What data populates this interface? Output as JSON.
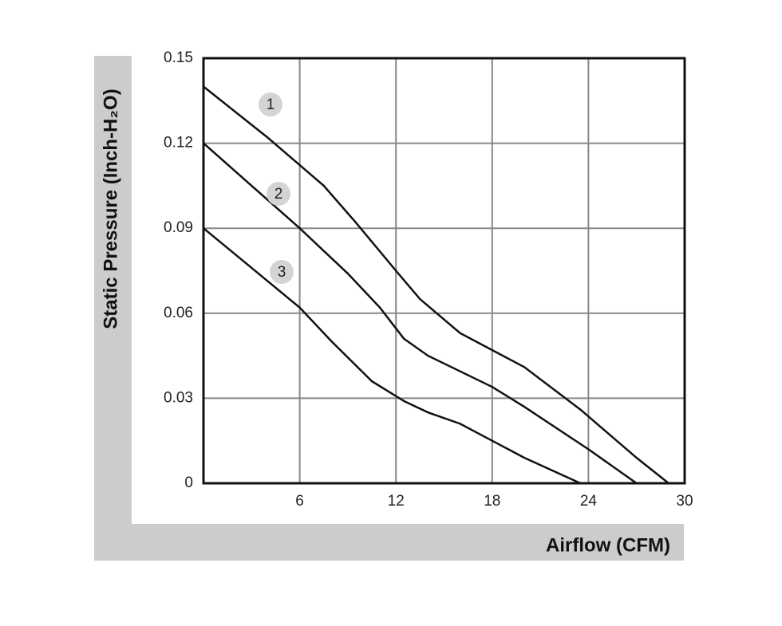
{
  "chart_data": {
    "type": "line",
    "xlabel": "Airflow (CFM)",
    "ylabel": "Static Pressure (Inch-H₂O)",
    "xlim": [
      0,
      30
    ],
    "xticks": [
      6,
      12,
      18,
      24,
      30
    ],
    "ylim": [
      0,
      0.15
    ],
    "yticks": [
      0,
      0.03,
      0.06,
      0.09,
      0.12,
      0.15
    ],
    "grid": true,
    "series": [
      {
        "name": "1",
        "color": "#111111",
        "x": [
          0,
          4,
          7.5,
          9.5,
          12,
          13.5,
          16,
          20,
          23.5,
          27,
          29
        ],
        "values": [
          0.14,
          0.122,
          0.105,
          0.092,
          0.075,
          0.065,
          0.053,
          0.041,
          0.026,
          0.009,
          0
        ]
      },
      {
        "name": "2",
        "color": "#111111",
        "x": [
          0,
          3,
          6,
          9,
          11,
          12.5,
          14,
          18,
          20,
          24,
          27
        ],
        "values": [
          0.12,
          0.105,
          0.09,
          0.074,
          0.062,
          0.051,
          0.045,
          0.034,
          0.027,
          0.012,
          0
        ]
      },
      {
        "name": "3",
        "color": "#111111",
        "x": [
          0,
          3,
          6,
          8,
          10.5,
          12.5,
          14,
          16,
          18,
          20,
          23.5
        ],
        "values": [
          0.09,
          0.076,
          0.062,
          0.05,
          0.036,
          0.029,
          0.025,
          0.021,
          0.015,
          0.009,
          0
        ]
      }
    ]
  }
}
